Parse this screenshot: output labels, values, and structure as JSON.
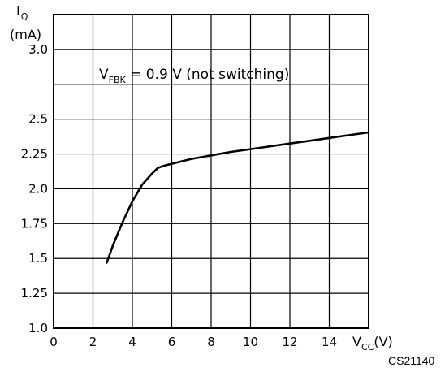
{
  "chart_data": {
    "type": "line",
    "title": "",
    "ylabel": {
      "main": "I",
      "sub": "Q",
      "unit": "(mA)"
    },
    "xlabel": {
      "main": "V",
      "sub": "CC",
      "unit": "(V)"
    },
    "annotation": {
      "main": "V",
      "sub": "FBK",
      "rest": " = 0.9 V (not switching)"
    },
    "figure_id": "CS21140",
    "xlim": [
      0,
      16
    ],
    "ylim": [
      1.0,
      3.0
    ],
    "x_ticks": [
      0,
      2,
      4,
      6,
      8,
      10,
      12,
      14
    ],
    "x_tick_labels": [
      "0",
      "2",
      "4",
      "6",
      "8",
      "10",
      "12",
      "14"
    ],
    "y_ticks": [
      1.0,
      1.25,
      1.5,
      1.75,
      2.0,
      2.25,
      2.5,
      3.0
    ],
    "y_tick_labels": [
      "1.0",
      "1.25",
      "1.5",
      "1.75",
      "2.0",
      "2.25",
      "2.5",
      "3.0"
    ],
    "grid": true,
    "series": [
      {
        "x": [
          2.7,
          3.0,
          3.5,
          4.0,
          4.5,
          5.0,
          5.3,
          5.6,
          6.0,
          7.0,
          8.0,
          9.0,
          10.0,
          11.0,
          12.0,
          13.0,
          14.0,
          15.0,
          16.0
        ],
        "y": [
          1.47,
          1.59,
          1.76,
          1.91,
          2.03,
          2.11,
          2.15,
          2.165,
          2.18,
          2.215,
          2.24,
          2.265,
          2.285,
          2.305,
          2.325,
          2.345,
          2.365,
          2.385,
          2.405
        ]
      }
    ]
  }
}
